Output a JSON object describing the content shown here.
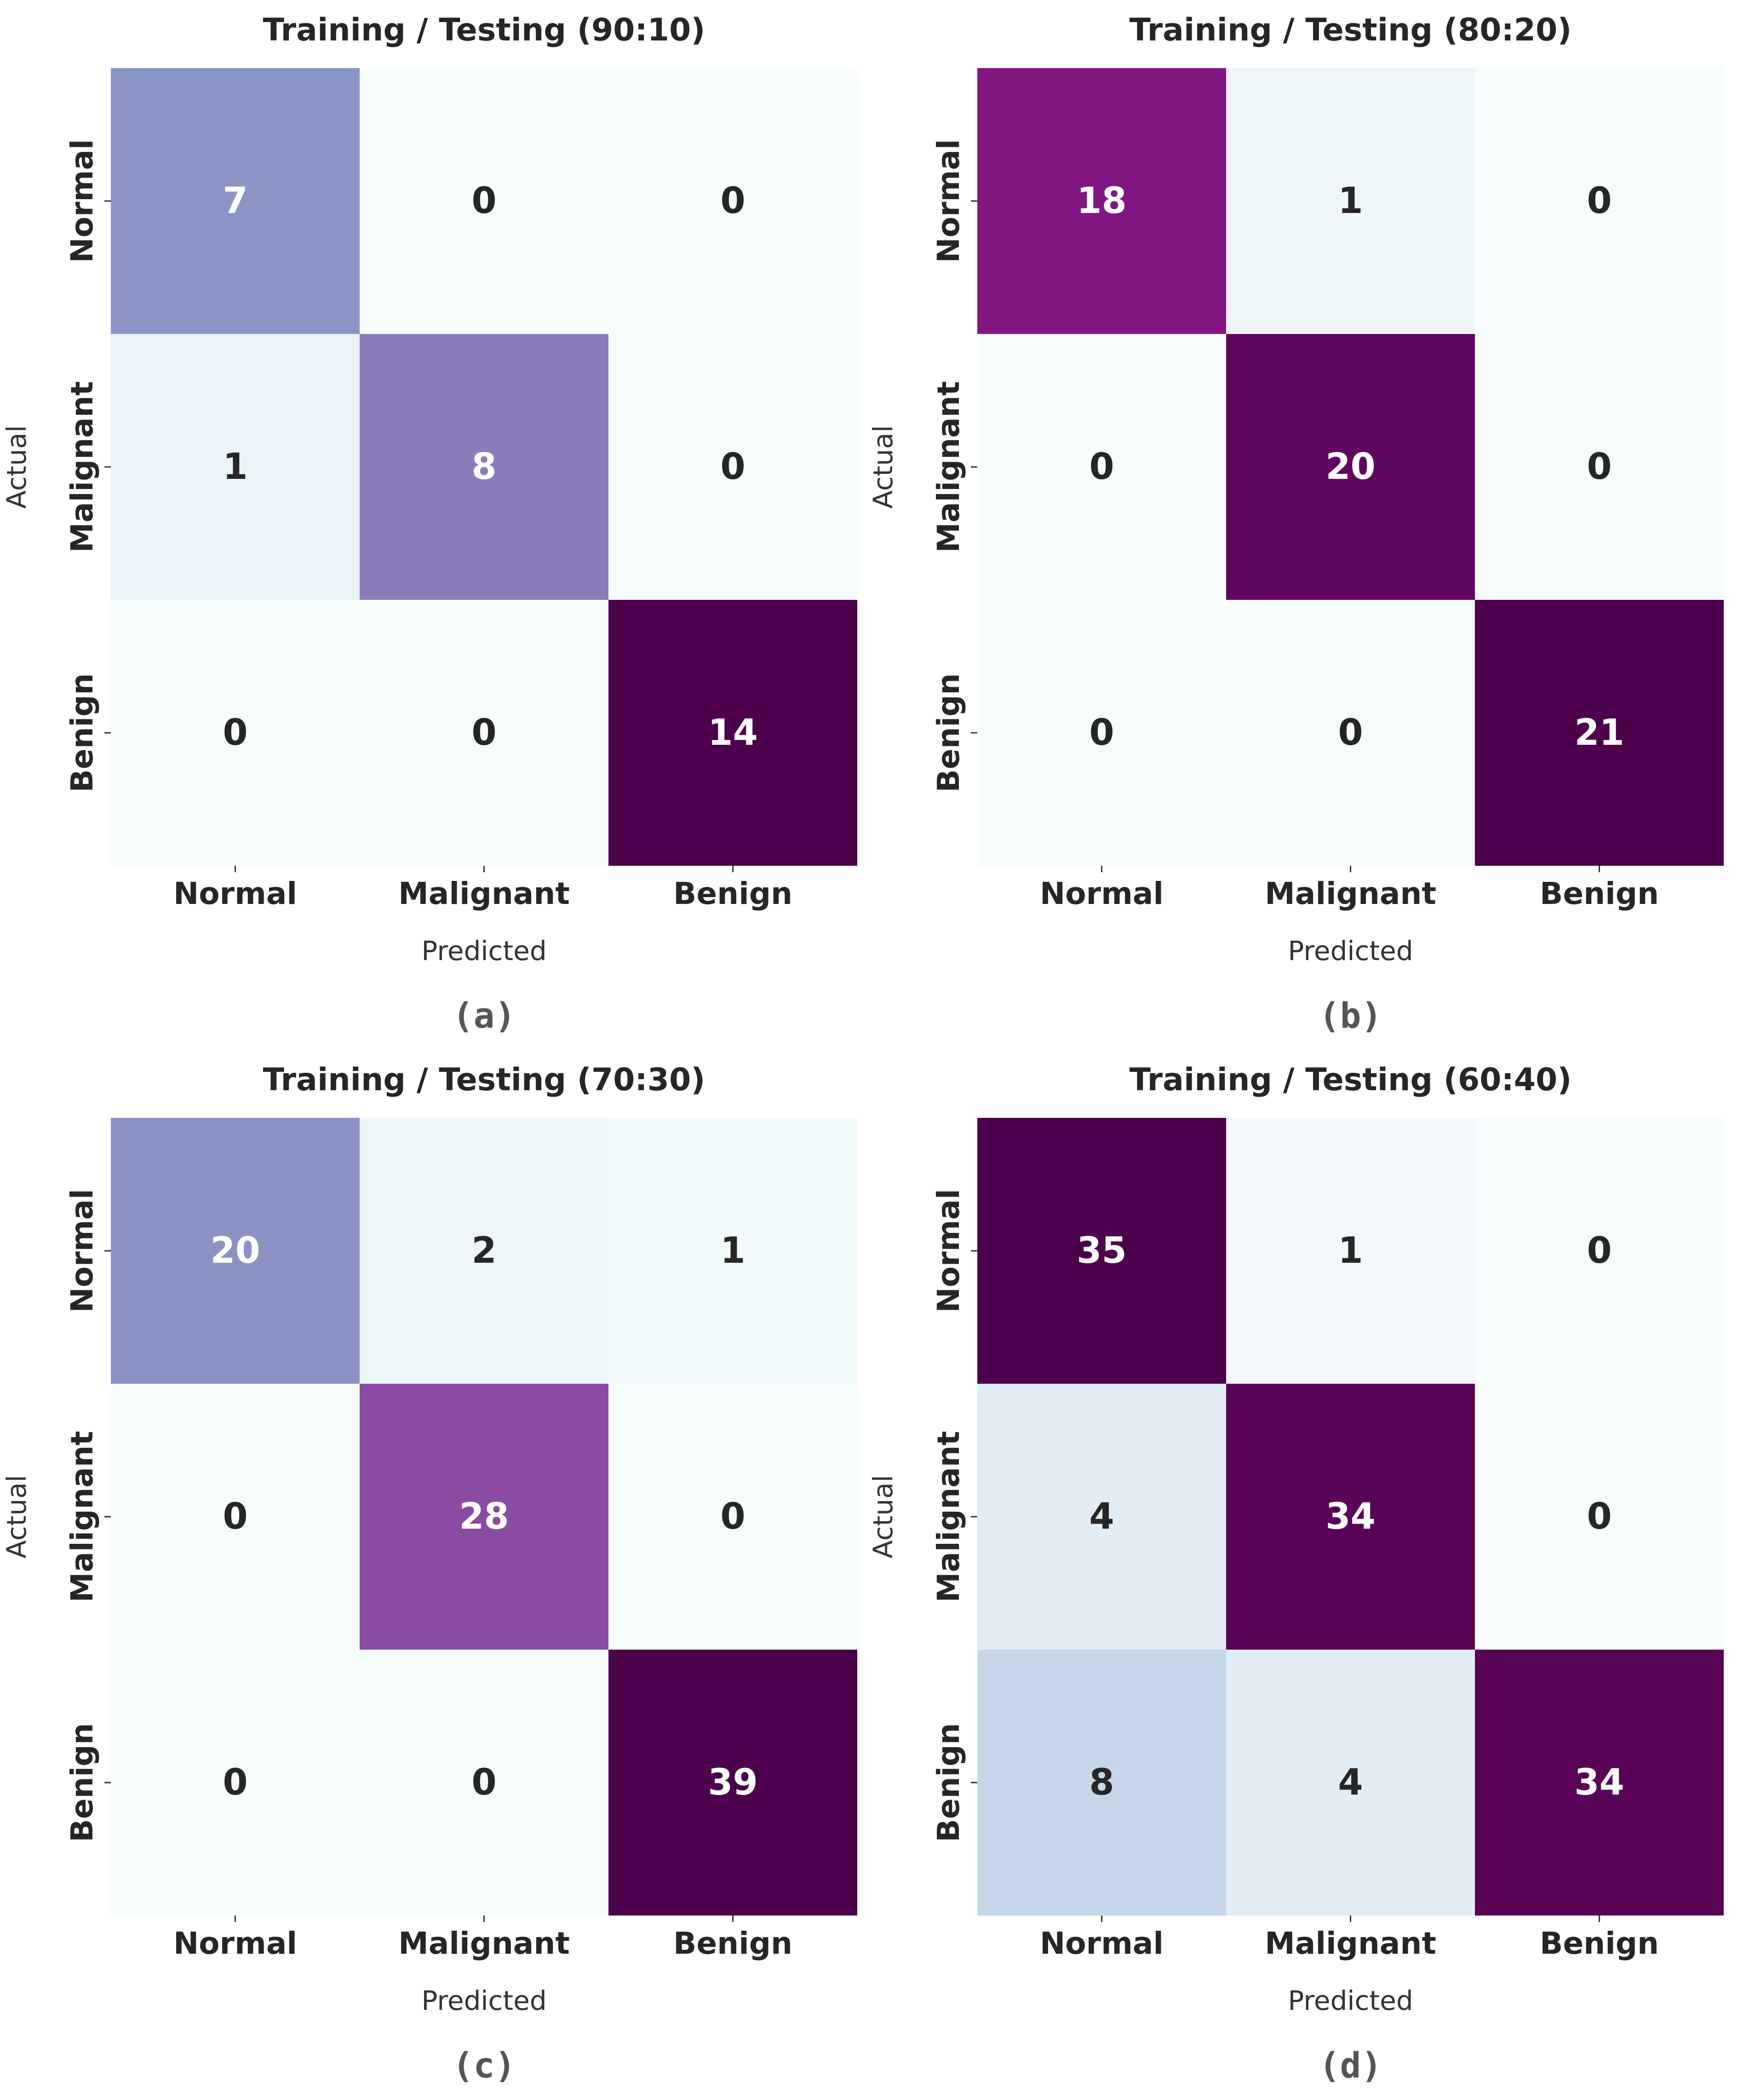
{
  "chart_data": [
    {
      "type": "heatmap",
      "title": "Training / Testing (90:10)",
      "panel_label": "(a)",
      "xlabel": "Predicted",
      "ylabel": "Actual",
      "x_categories": [
        "Normal",
        "Malignant",
        "Benign"
      ],
      "y_categories": [
        "Normal",
        "Malignant",
        "Benign"
      ],
      "matrix": [
        [
          7,
          0,
          0
        ],
        [
          1,
          8,
          0
        ],
        [
          0,
          0,
          14
        ]
      ],
      "colormap": "BuPu",
      "colorbar": false
    },
    {
      "type": "heatmap",
      "title": "Training / Testing (80:20)",
      "panel_label": "(b)",
      "xlabel": "Predicted",
      "ylabel": "Actual",
      "x_categories": [
        "Normal",
        "Malignant",
        "Benign"
      ],
      "y_categories": [
        "Normal",
        "Malignant",
        "Benign"
      ],
      "matrix": [
        [
          18,
          1,
          0
        ],
        [
          0,
          20,
          0
        ],
        [
          0,
          0,
          21
        ]
      ],
      "colormap": "BuPu",
      "colorbar": false
    },
    {
      "type": "heatmap",
      "title": "Training / Testing (70:30)",
      "panel_label": "(c)",
      "xlabel": "Predicted",
      "ylabel": "Actual",
      "x_categories": [
        "Normal",
        "Malignant",
        "Benign"
      ],
      "y_categories": [
        "Normal",
        "Malignant",
        "Benign"
      ],
      "matrix": [
        [
          20,
          2,
          1
        ],
        [
          0,
          28,
          0
        ],
        [
          0,
          0,
          39
        ]
      ],
      "colormap": "BuPu",
      "colorbar": false
    },
    {
      "type": "heatmap",
      "title": "Training / Testing (60:40)",
      "panel_label": "(d)",
      "xlabel": "Predicted",
      "ylabel": "Actual",
      "x_categories": [
        "Normal",
        "Malignant",
        "Benign"
      ],
      "y_categories": [
        "Normal",
        "Malignant",
        "Benign"
      ],
      "matrix": [
        [
          35,
          1,
          0
        ],
        [
          4,
          34,
          0
        ],
        [
          8,
          4,
          34
        ]
      ],
      "colormap": "BuPu",
      "colorbar": false
    }
  ],
  "colors": {
    "colormap_stops": [
      "#f7fcfd",
      "#e0ecf4",
      "#bfd3e6",
      "#9ebcda",
      "#8c96c6",
      "#8c6bb1",
      "#88419d",
      "#810f7c",
      "#4d004b"
    ],
    "dark_text": "#262626",
    "light_text": "#ffffff"
  }
}
